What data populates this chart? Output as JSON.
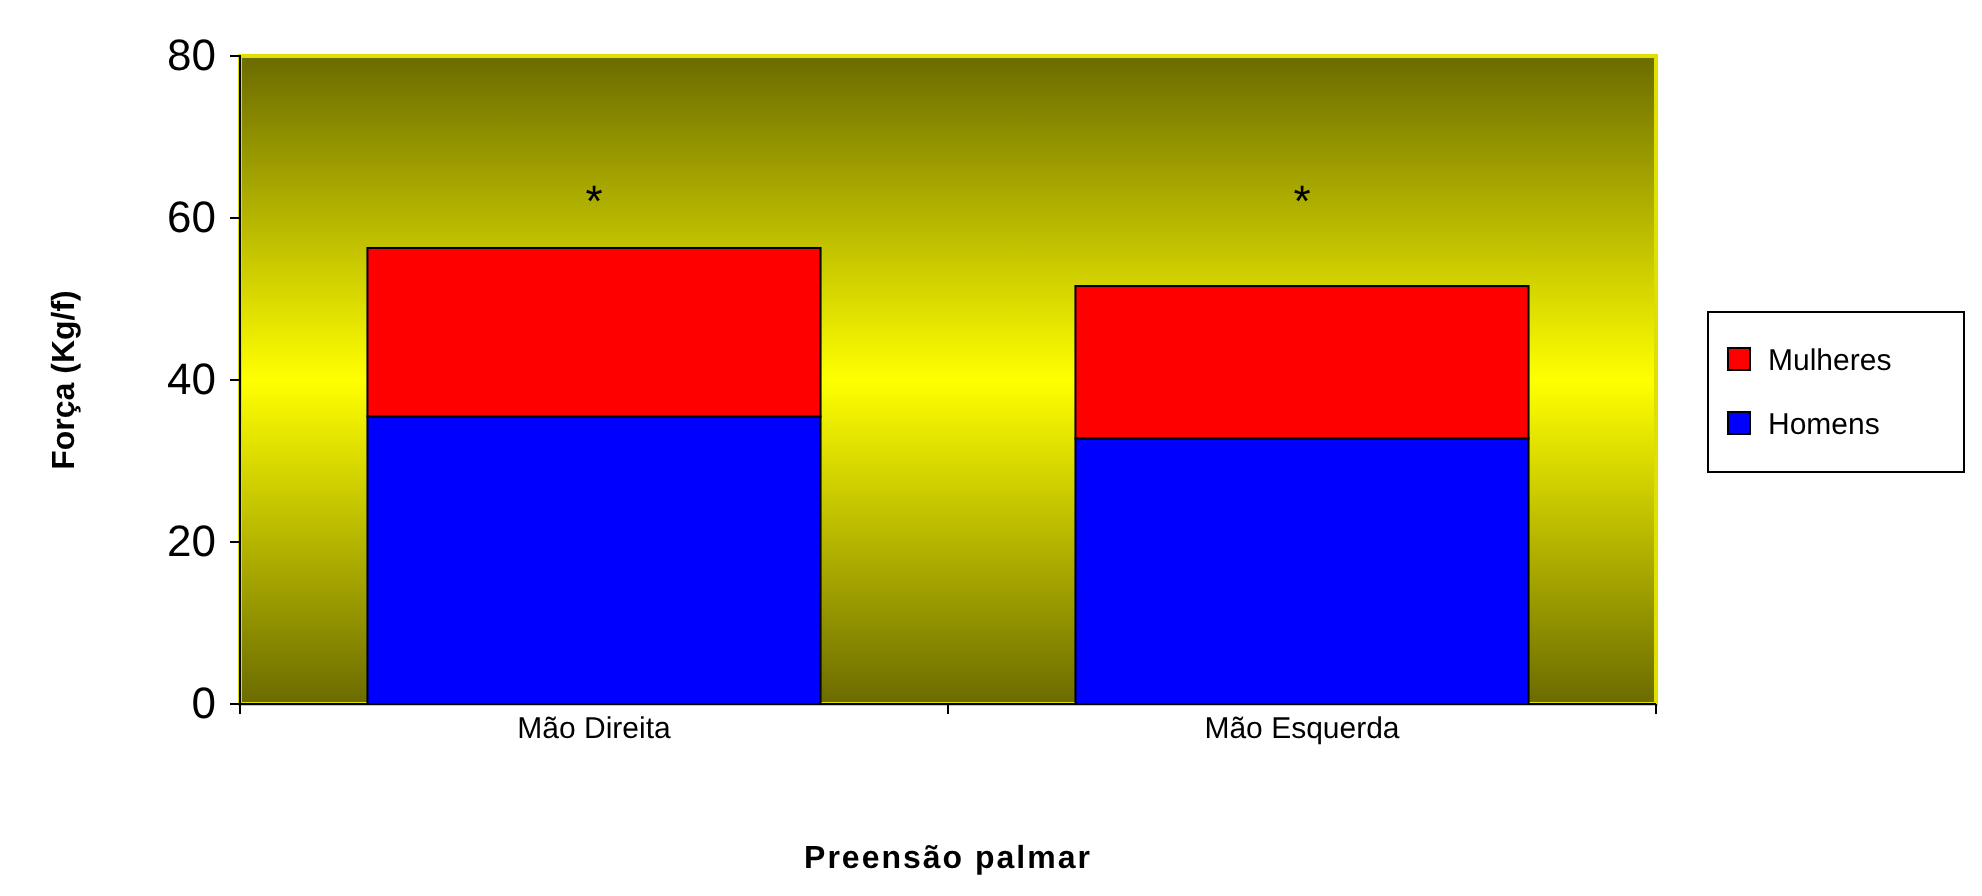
{
  "chart_data": {
    "type": "bar",
    "stacked": true,
    "xlabel": "Preensão palmar",
    "ylabel": "Força (Kg/f)",
    "categories": [
      "Mão Direita",
      "Mão Esquerda"
    ],
    "series": [
      {
        "name": "Homens",
        "color": "#0000ff",
        "values": [
          35.5,
          32.8
        ]
      },
      {
        "name": "Mulheres",
        "color": "#ff0000",
        "values": [
          20.8,
          18.8
        ]
      }
    ],
    "ylim": [
      0,
      80
    ],
    "yticks": [
      0,
      20,
      40,
      60,
      80
    ],
    "grid": false,
    "legend": "right",
    "annotations": [
      "*",
      "*"
    ]
  }
}
